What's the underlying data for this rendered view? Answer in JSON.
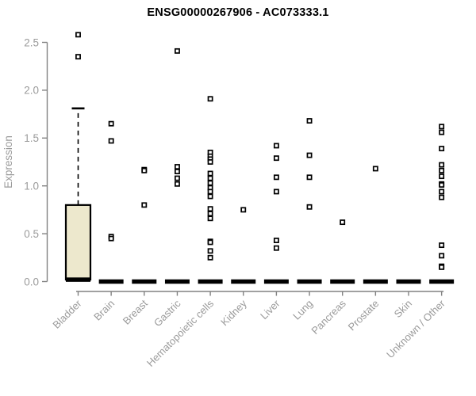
{
  "header": {
    "title": "ENSG00000267906 - AC073333.1"
  },
  "chart_data": {
    "type": "boxplot",
    "title": "ENSG00000267906 - AC073333.1",
    "xlabel": "",
    "ylabel": "Expression",
    "ylim": [
      0,
      2.5
    ],
    "yticks": [
      0.0,
      0.5,
      1.0,
      1.5,
      2.0,
      2.5
    ],
    "grid": false,
    "legend": "none",
    "categories": [
      "Bladder",
      "Brain",
      "Breast",
      "Gastric",
      "Hematopoietic cells",
      "Kidney",
      "Liver",
      "Lung",
      "Pancreas",
      "Prostate",
      "Skin",
      "Unknown / Other"
    ],
    "boxes": [
      {
        "category": "Bladder",
        "q1": 0.02,
        "median": 0.02,
        "q3": 0.8,
        "whisker_low": 0.0,
        "whisker_high": 1.81,
        "outliers": [
          2.58,
          2.35
        ]
      },
      {
        "category": "Brain",
        "q1": 0.0,
        "median": 0.0,
        "q3": 0.0,
        "whisker_low": 0.0,
        "whisker_high": 0.0,
        "outliers": [
          1.65,
          1.47,
          0.47,
          0.45
        ]
      },
      {
        "category": "Breast",
        "q1": 0.0,
        "median": 0.0,
        "q3": 0.0,
        "whisker_low": 0.0,
        "whisker_high": 0.0,
        "outliers": [
          1.17,
          1.16,
          0.8
        ]
      },
      {
        "category": "Gastric",
        "q1": 0.0,
        "median": 0.0,
        "q3": 0.0,
        "whisker_low": 0.0,
        "whisker_high": 0.0,
        "outliers": [
          2.41,
          1.2,
          1.15,
          1.08,
          1.02
        ]
      },
      {
        "category": "Hematopoietic cells",
        "q1": 0.0,
        "median": 0.0,
        "q3": 0.0,
        "whisker_low": 0.0,
        "whisker_high": 0.0,
        "outliers": [
          1.91,
          1.35,
          1.31,
          1.28,
          1.25,
          1.13,
          1.08,
          1.03,
          0.98,
          0.94,
          0.89,
          0.76,
          0.71,
          0.66,
          0.42,
          0.41,
          0.32,
          0.25
        ]
      },
      {
        "category": "Kidney",
        "q1": 0.0,
        "median": 0.0,
        "q3": 0.0,
        "whisker_low": 0.0,
        "whisker_high": 0.0,
        "outliers": [
          0.75
        ]
      },
      {
        "category": "Liver",
        "q1": 0.0,
        "median": 0.0,
        "q3": 0.0,
        "whisker_low": 0.0,
        "whisker_high": 0.0,
        "outliers": [
          1.42,
          1.29,
          1.09,
          0.94,
          0.43,
          0.35
        ]
      },
      {
        "category": "Lung",
        "q1": 0.0,
        "median": 0.0,
        "q3": 0.0,
        "whisker_low": 0.0,
        "whisker_high": 0.0,
        "outliers": [
          1.68,
          1.32,
          1.09,
          0.78
        ]
      },
      {
        "category": "Pancreas",
        "q1": 0.0,
        "median": 0.0,
        "q3": 0.0,
        "whisker_low": 0.0,
        "whisker_high": 0.0,
        "outliers": [
          0.62
        ]
      },
      {
        "category": "Prostate",
        "q1": 0.0,
        "median": 0.0,
        "q3": 0.0,
        "whisker_low": 0.0,
        "whisker_high": 0.0,
        "outliers": [
          1.18
        ]
      },
      {
        "category": "Skin",
        "q1": 0.0,
        "median": 0.0,
        "q3": 0.0,
        "whisker_low": 0.0,
        "whisker_high": 0.0,
        "outliers": []
      },
      {
        "category": "Unknown / Other",
        "q1": 0.0,
        "median": 0.0,
        "q3": 0.0,
        "whisker_low": 0.0,
        "whisker_high": 0.0,
        "outliers": [
          1.62,
          1.56,
          1.39,
          1.22,
          1.16,
          1.1,
          1.02,
          1.01,
          0.94,
          0.88,
          0.38,
          0.27,
          0.16,
          0.15
        ]
      }
    ],
    "colors": {
      "box_fill": "#EDE8CD",
      "box_stroke": "#000000",
      "median": "#000000",
      "whisker": "#000000",
      "outlier_stroke": "#000000",
      "outlier_fill": "#ffffff",
      "axis_line": "#828282",
      "axis_text": "#9b9b9b",
      "title_text": "#000000"
    }
  }
}
